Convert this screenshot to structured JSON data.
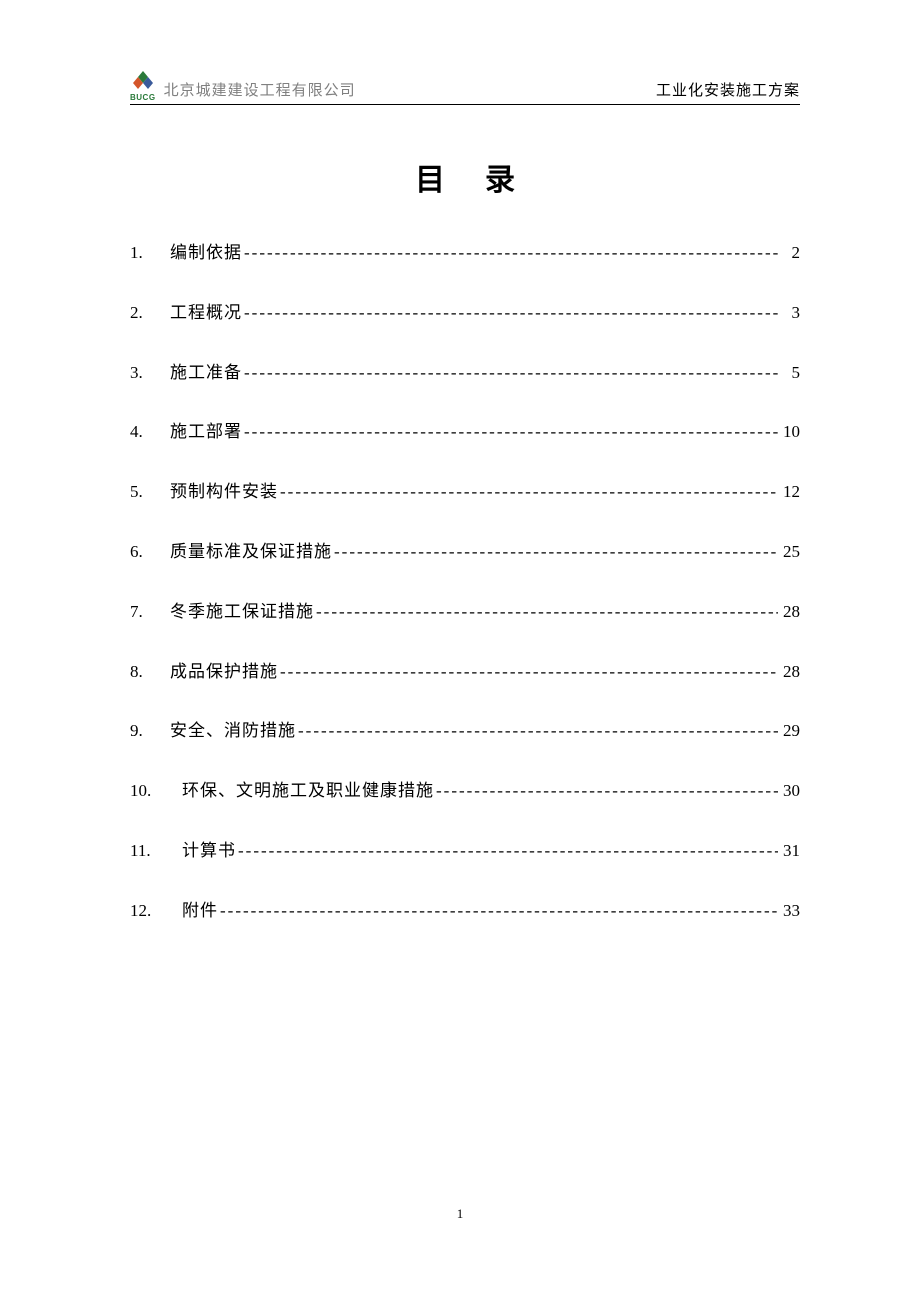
{
  "header": {
    "logo_text": "BUCG",
    "company_name": "北京城建建设工程有限公司",
    "doc_title": "工业化安装施工方案",
    "logo_colors": {
      "green": "#2a7a3a",
      "red_orange": "#d4552a",
      "blue": "#3a5a9a"
    }
  },
  "title": "目录",
  "toc": [
    {
      "num": "1.",
      "text": "编制依据",
      "page": "2"
    },
    {
      "num": "2.",
      "text": "工程概况",
      "page": "3"
    },
    {
      "num": "3.",
      "text": "施工准备",
      "page": "5"
    },
    {
      "num": "4.",
      "text": "施工部署",
      "page": "10"
    },
    {
      "num": "5.",
      "text": "预制构件安装",
      "page": "12"
    },
    {
      "num": "6.",
      "text": "质量标准及保证措施",
      "page": "25"
    },
    {
      "num": "7.",
      "text": "冬季施工保证措施",
      "page": "28"
    },
    {
      "num": "8.",
      "text": "成品保护措施",
      "page": "28"
    },
    {
      "num": "9.",
      "text": "安全、消防措施",
      "page": "29"
    },
    {
      "num": "10.",
      "text": "环保、文明施工及职业健康措施",
      "page": "30"
    },
    {
      "num": "11.",
      "text": "计算书",
      "page": "31"
    },
    {
      "num": "12.",
      "text": "附件",
      "page": "33"
    }
  ],
  "page_number": "1",
  "leader_char": "-",
  "style": {
    "body_font": "SimSun",
    "title_fontsize": 30,
    "item_fontsize": 17,
    "header_fontsize": 15,
    "item_spacing": 36,
    "text_color": "#000000",
    "company_color": "#808080",
    "background": "#ffffff"
  }
}
